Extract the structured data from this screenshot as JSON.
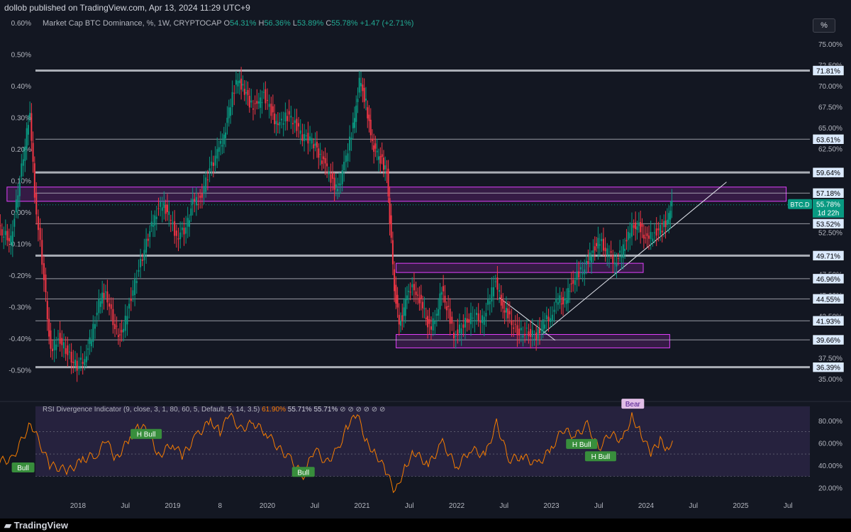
{
  "header": {
    "publisher": "dollob published on TradingView.com, Apr 13, 2024 11:29 UTC+9"
  },
  "legend": {
    "name": "Market Cap BTC Dominance, %, 1W, CRYPTOCAP",
    "o_label": "O",
    "o": "54.31%",
    "h_label": "H",
    "h": "56.36%",
    "l_label": "L",
    "l": "53.89%",
    "c_label": "C",
    "c": "55.78%",
    "change": "+1.47 (+2.71%)"
  },
  "scale_button": "%",
  "price_label": {
    "symbol": "BTC.D",
    "value": "55.78%",
    "countdown": "1d 22h"
  },
  "rsi_legend": {
    "name": "RSI Divergence Indicator (9, close, 3, 1, 80, 60, 5, Default, 5, 14, 3.5)",
    "v1": "61.90%",
    "v2": "55.71%",
    "v3": "55.71%",
    "tail": "⊘ ⊘ ⊘ ⊘ ⊘ ⊘"
  },
  "footer": {
    "brand": "TradingView"
  },
  "colors": {
    "background": "#131722",
    "up": "#089981",
    "down": "#f23645",
    "zone": "#9c27b0",
    "rsi": "#f57c00",
    "label_bg": "#dbeafe"
  },
  "chart_data": [
    {
      "type": "candlestick",
      "title": "Market Cap BTC Dominance, %, 1W, CRYPTOCAP",
      "x_ticks": [
        "2018",
        "Jul",
        "2019",
        "8",
        "2020",
        "Jul",
        "2021",
        "Jul",
        "2022",
        "Jul",
        "2023",
        "Jul",
        "2024",
        "Jul",
        "2025",
        "Jul"
      ],
      "y_right_ticks": [
        "75.00%",
        "72.50%",
        "70.00%",
        "67.50%",
        "65.00%",
        "62.50%",
        "60.00%",
        "57.50%",
        "55.00%",
        "52.50%",
        "50.00%",
        "47.50%",
        "45.00%",
        "42.50%",
        "40.00%",
        "37.50%",
        "35.00%"
      ],
      "y_left_ticks": [
        "0.60%",
        "0.50%",
        "0.40%",
        "0.30%",
        "0.20%",
        "0.10%",
        "0.00%",
        "-0.10%",
        "-0.20%",
        "-0.30%",
        "-0.40%",
        "-0.50%"
      ],
      "y_range": [
        34.5,
        76.0
      ],
      "horizontal_levels": [
        "71.81%",
        "63.61%",
        "59.64%",
        "57.18%",
        "53.52%",
        "49.71%",
        "46.96%",
        "44.55%",
        "41.93%",
        "39.66%",
        "36.39%"
      ],
      "levels_values": [
        71.81,
        63.61,
        59.64,
        57.18,
        53.52,
        49.71,
        46.96,
        44.55,
        41.93,
        39.66,
        36.39
      ],
      "heavy_levels": [
        71.81,
        59.64,
        49.71,
        36.39
      ],
      "zones": [
        {
          "x_start": 2017.25,
          "x_end": 2025.48,
          "y_low": 56.2,
          "y_high": 57.9
        },
        {
          "x_start": 2021.36,
          "x_end": 2023.97,
          "y_low": 47.7,
          "y_high": 48.8
        },
        {
          "x_start": 2021.36,
          "x_end": 2024.25,
          "y_low": 38.7,
          "y_high": 40.3
        }
      ],
      "trendlines": [
        {
          "x1": 2022.45,
          "y1": 44.7,
          "x2": 2023.04,
          "y2": 39.6
        },
        {
          "x1": 2022.9,
          "y1": 40.3,
          "x2": 2024.85,
          "y2": 58.5
        }
      ],
      "series": [
        {
          "x": 2017.0,
          "close": 54.0
        },
        {
          "x": 2017.15,
          "close": 53.0
        },
        {
          "x": 2017.3,
          "close": 51.5
        },
        {
          "x": 2017.45,
          "close": 63.0
        },
        {
          "x": 2017.5,
          "close": 67.0
        },
        {
          "x": 2017.55,
          "close": 57.0
        },
        {
          "x": 2017.65,
          "close": 47.0
        },
        {
          "x": 2017.72,
          "close": 38.0
        },
        {
          "x": 2017.8,
          "close": 40.0
        },
        {
          "x": 2017.9,
          "close": 38.0
        },
        {
          "x": 2018.0,
          "close": 36.4
        },
        {
          "x": 2018.08,
          "close": 37.5
        },
        {
          "x": 2018.15,
          "close": 40.0
        },
        {
          "x": 2018.23,
          "close": 44.0
        },
        {
          "x": 2018.3,
          "close": 45.5
        },
        {
          "x": 2018.4,
          "close": 41.0
        },
        {
          "x": 2018.47,
          "close": 40.0
        },
        {
          "x": 2018.55,
          "close": 44.0
        },
        {
          "x": 2018.65,
          "close": 48.0
        },
        {
          "x": 2018.75,
          "close": 52.0
        },
        {
          "x": 2018.82,
          "close": 54.5
        },
        {
          "x": 2018.9,
          "close": 56.0
        },
        {
          "x": 2018.97,
          "close": 54.5
        },
        {
          "x": 2019.05,
          "close": 52.0
        },
        {
          "x": 2019.15,
          "close": 53.0
        },
        {
          "x": 2019.22,
          "close": 56.0
        },
        {
          "x": 2019.3,
          "close": 56.5
        },
        {
          "x": 2019.4,
          "close": 60.0
        },
        {
          "x": 2019.48,
          "close": 62.0
        },
        {
          "x": 2019.55,
          "close": 64.0
        },
        {
          "x": 2019.62,
          "close": 68.0
        },
        {
          "x": 2019.68,
          "close": 70.5
        },
        {
          "x": 2019.75,
          "close": 70.0
        },
        {
          "x": 2019.82,
          "close": 68.0
        },
        {
          "x": 2019.9,
          "close": 67.5
        },
        {
          "x": 2019.97,
          "close": 69.0
        },
        {
          "x": 2020.05,
          "close": 67.0
        },
        {
          "x": 2020.12,
          "close": 65.0
        },
        {
          "x": 2020.2,
          "close": 66.5
        },
        {
          "x": 2020.28,
          "close": 66.0
        },
        {
          "x": 2020.38,
          "close": 64.0
        },
        {
          "x": 2020.48,
          "close": 63.5
        },
        {
          "x": 2020.55,
          "close": 62.0
        },
        {
          "x": 2020.62,
          "close": 60.5
        },
        {
          "x": 2020.7,
          "close": 58.5
        },
        {
          "x": 2020.75,
          "close": 57.5
        },
        {
          "x": 2020.8,
          "close": 59.5
        },
        {
          "x": 2020.88,
          "close": 63.5
        },
        {
          "x": 2020.93,
          "close": 66.0
        },
        {
          "x": 2020.98,
          "close": 70.5
        },
        {
          "x": 2021.05,
          "close": 68.0
        },
        {
          "x": 2021.1,
          "close": 64.0
        },
        {
          "x": 2021.15,
          "close": 62.0
        },
        {
          "x": 2021.22,
          "close": 61.0
        },
        {
          "x": 2021.27,
          "close": 59.5
        },
        {
          "x": 2021.3,
          "close": 54.0
        },
        {
          "x": 2021.35,
          "close": 46.0
        },
        {
          "x": 2021.4,
          "close": 41.5
        },
        {
          "x": 2021.45,
          "close": 43.0
        },
        {
          "x": 2021.5,
          "close": 46.0
        },
        {
          "x": 2021.58,
          "close": 45.5
        },
        {
          "x": 2021.65,
          "close": 43.5
        },
        {
          "x": 2021.72,
          "close": 41.0
        },
        {
          "x": 2021.78,
          "close": 42.0
        },
        {
          "x": 2021.85,
          "close": 45.5
        },
        {
          "x": 2021.92,
          "close": 43.0
        },
        {
          "x": 2021.98,
          "close": 40.0
        },
        {
          "x": 2022.08,
          "close": 41.5
        },
        {
          "x": 2022.18,
          "close": 42.5
        },
        {
          "x": 2022.28,
          "close": 42.0
        },
        {
          "x": 2022.36,
          "close": 44.5
        },
        {
          "x": 2022.42,
          "close": 47.0
        },
        {
          "x": 2022.48,
          "close": 44.0
        },
        {
          "x": 2022.55,
          "close": 42.5
        },
        {
          "x": 2022.65,
          "close": 40.5
        },
        {
          "x": 2022.75,
          "close": 40.5
        },
        {
          "x": 2022.85,
          "close": 40.0
        },
        {
          "x": 2022.92,
          "close": 41.5
        },
        {
          "x": 2023.0,
          "close": 42.5
        },
        {
          "x": 2023.08,
          "close": 44.5
        },
        {
          "x": 2023.15,
          "close": 44.0
        },
        {
          "x": 2023.22,
          "close": 46.5
        },
        {
          "x": 2023.3,
          "close": 47.5
        },
        {
          "x": 2023.38,
          "close": 48.5
        },
        {
          "x": 2023.45,
          "close": 50.5
        },
        {
          "x": 2023.52,
          "close": 51.5
        },
        {
          "x": 2023.6,
          "close": 50.0
        },
        {
          "x": 2023.68,
          "close": 49.0
        },
        {
          "x": 2023.75,
          "close": 50.0
        },
        {
          "x": 2023.82,
          "close": 52.0
        },
        {
          "x": 2023.88,
          "close": 53.5
        },
        {
          "x": 2023.95,
          "close": 53.0
        },
        {
          "x": 2024.02,
          "close": 51.5
        },
        {
          "x": 2024.1,
          "close": 52.5
        },
        {
          "x": 2024.18,
          "close": 53.0
        },
        {
          "x": 2024.25,
          "close": 54.3
        },
        {
          "x": 2024.28,
          "close": 55.78
        }
      ]
    },
    {
      "type": "line",
      "title": "RSI Divergence Indicator (9, close, 3, 1, 80, 60, 5, Default, 5, 14, 3.5)",
      "y_ticks": [
        "80.00%",
        "60.00%",
        "40.00%",
        "20.00%"
      ],
      "y_range": [
        12,
        90
      ],
      "band": [
        60,
        80
      ],
      "labels": [
        {
          "text": "Bull",
          "x": 2017.42,
          "y": 38
        },
        {
          "text": "H Bull",
          "x": 2018.72,
          "y": 68
        },
        {
          "text": "Bull",
          "x": 2020.38,
          "y": 34
        },
        {
          "text": "H Bull",
          "x": 2023.32,
          "y": 59
        },
        {
          "text": "H Bull",
          "x": 2023.52,
          "y": 48
        },
        {
          "text": "Bear",
          "x": 2023.86,
          "y": 95
        }
      ],
      "values": [
        {
          "x": 2017.0,
          "y": 42
        },
        {
          "x": 2017.3,
          "y": 45
        },
        {
          "x": 2017.5,
          "y": 78
        },
        {
          "x": 2017.7,
          "y": 40
        },
        {
          "x": 2017.9,
          "y": 35
        },
        {
          "x": 2018.05,
          "y": 45
        },
        {
          "x": 2018.2,
          "y": 50
        },
        {
          "x": 2018.3,
          "y": 62
        },
        {
          "x": 2018.4,
          "y": 45
        },
        {
          "x": 2018.55,
          "y": 65
        },
        {
          "x": 2018.65,
          "y": 75
        },
        {
          "x": 2018.75,
          "y": 70
        },
        {
          "x": 2018.85,
          "y": 48
        },
        {
          "x": 2019.0,
          "y": 60
        },
        {
          "x": 2019.1,
          "y": 48
        },
        {
          "x": 2019.25,
          "y": 66
        },
        {
          "x": 2019.4,
          "y": 80
        },
        {
          "x": 2019.5,
          "y": 70
        },
        {
          "x": 2019.6,
          "y": 85
        },
        {
          "x": 2019.72,
          "y": 72
        },
        {
          "x": 2019.85,
          "y": 78
        },
        {
          "x": 2020.0,
          "y": 68
        },
        {
          "x": 2020.12,
          "y": 55
        },
        {
          "x": 2020.25,
          "y": 45
        },
        {
          "x": 2020.38,
          "y": 30
        },
        {
          "x": 2020.5,
          "y": 55
        },
        {
          "x": 2020.62,
          "y": 42
        },
        {
          "x": 2020.75,
          "y": 55
        },
        {
          "x": 2020.85,
          "y": 76
        },
        {
          "x": 2020.95,
          "y": 85
        },
        {
          "x": 2021.05,
          "y": 60
        },
        {
          "x": 2021.15,
          "y": 50
        },
        {
          "x": 2021.25,
          "y": 35
        },
        {
          "x": 2021.35,
          "y": 15
        },
        {
          "x": 2021.45,
          "y": 38
        },
        {
          "x": 2021.55,
          "y": 52
        },
        {
          "x": 2021.7,
          "y": 40
        },
        {
          "x": 2021.85,
          "y": 60
        },
        {
          "x": 2022.0,
          "y": 38
        },
        {
          "x": 2022.15,
          "y": 55
        },
        {
          "x": 2022.3,
          "y": 48
        },
        {
          "x": 2022.42,
          "y": 78
        },
        {
          "x": 2022.55,
          "y": 45
        },
        {
          "x": 2022.7,
          "y": 48
        },
        {
          "x": 2022.85,
          "y": 40
        },
        {
          "x": 2023.0,
          "y": 55
        },
        {
          "x": 2023.12,
          "y": 72
        },
        {
          "x": 2023.25,
          "y": 66
        },
        {
          "x": 2023.38,
          "y": 76
        },
        {
          "x": 2023.5,
          "y": 55
        },
        {
          "x": 2023.62,
          "y": 68
        },
        {
          "x": 2023.75,
          "y": 62
        },
        {
          "x": 2023.85,
          "y": 84
        },
        {
          "x": 2023.95,
          "y": 68
        },
        {
          "x": 2024.05,
          "y": 50
        },
        {
          "x": 2024.15,
          "y": 62
        },
        {
          "x": 2024.22,
          "y": 55
        },
        {
          "x": 2024.28,
          "y": 61.9
        }
      ]
    }
  ]
}
